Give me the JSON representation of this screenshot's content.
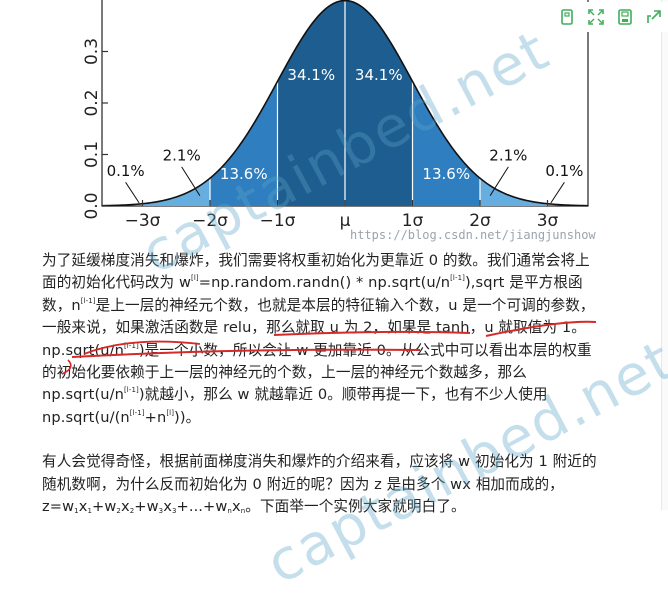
{
  "toolbar": {
    "icons": [
      "copy-icon",
      "expand-icon",
      "save-icon",
      "share-icon"
    ]
  },
  "colors": {
    "dark_blue": "#1e5d8f",
    "mid_blue": "#2f7fc0",
    "light_blue": "#67aee0",
    "annotation_red": "#d62a2a",
    "watermark": "#5aa6c8"
  },
  "chart_data": {
    "type": "area",
    "title": "",
    "xlabel": "",
    "ylabel": "",
    "y_ticks": [
      "0.0",
      "0.1",
      "0.2",
      "0.3"
    ],
    "x_ticks": [
      "−3σ",
      "−2σ",
      "−1σ",
      "μ",
      "1σ",
      "2σ",
      "3σ"
    ],
    "ylim": [
      0,
      0.4
    ],
    "xlim": [
      -3.6,
      3.6
    ],
    "regions": [
      {
        "range": [
          -1,
          1
        ],
        "label_left": "34.1%",
        "label_right": "34.1%",
        "color": "#1e5d8f"
      },
      {
        "range": [
          -2,
          -1
        ],
        "label": "13.6%",
        "color": "#2f7fc0"
      },
      {
        "range": [
          1,
          2
        ],
        "label": "13.6%",
        "color": "#2f7fc0"
      },
      {
        "range": [
          -3,
          -2
        ],
        "label": "2.1%",
        "color": "#67aee0"
      },
      {
        "range": [
          2,
          3
        ],
        "label": "2.1%",
        "color": "#67aee0"
      },
      {
        "range": [
          -3.6,
          -3
        ],
        "label": "0.1%"
      },
      {
        "range": [
          3,
          3.6
        ],
        "label": "0.1%"
      }
    ]
  },
  "watermark": {
    "line1": "captainbed.net",
    "line2": "captainbed.net",
    "source": "https://blog.csdn.net/jiangjunshow"
  },
  "article": {
    "p1_s1": "为了延缓梯度消失和爆炸，我们需要将权重初始化为更靠近 0 的数。我们通常会将上面的初始化代码改为 w",
    "p1_s2": "=np.random.randn() * np.sqrt(u/n",
    "p1_s3": "),sqrt 是平方根函数，n",
    "p1_s4": "是上一层的神经元个数，也就是本层的特征输入个数，u 是一个可调的参数，一般来说，如果激活函数是 relu，那么就取 u 为 2，如果是 tanh，u 就取值为 1。np.sqrt(u/n",
    "p1_s5": ")是一个小数，所以会让 w 更加靠近 0。从公式中可以看出本层的权重的初始化要依赖于上一层的神经元的个数，上一层的神经元个数越多，那么 np.sqrt(u/n",
    "p1_s6": ")就越小，那么 w 就越靠近 0。顺带再提一下，也有不少人使用 np.sqrt(u/(n",
    "p1_s7": "+n",
    "p1_s8": "))。",
    "sup_l": "[l]",
    "sup_lm1": "[l-1]",
    "p2_s1": "有人会觉得奇怪，根据前面梯度消失和爆炸的介绍来看，应该将 w 初始化为 1 附近的随机数啊，为什么反而初始化为 0 附近的呢？因为 z 是由多个 wx 相加而成的，z=w",
    "p2_s2": "x",
    "p2_s3": "+w",
    "p2_s4": "x",
    "p2_s5": "+w",
    "p2_s6": "x",
    "p2_s7": "+...+w",
    "p2_s8": "x",
    "p2_s9": "。下面举一个实例大家就明白了。",
    "sub_1": "1",
    "sub_2": "2",
    "sub_3": "3",
    "sub_n": "n"
  }
}
